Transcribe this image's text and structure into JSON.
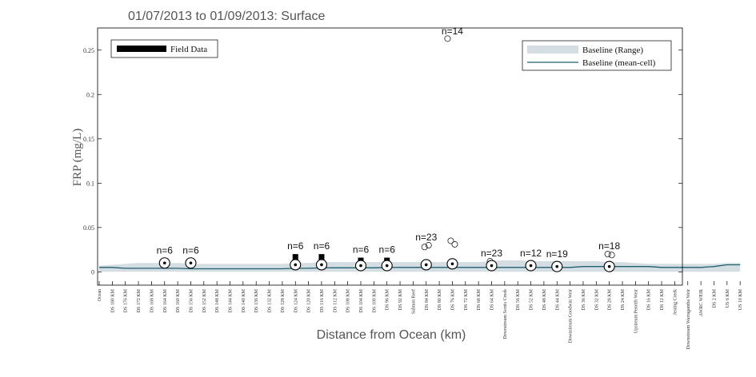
{
  "chart_data": {
    "type": "scatter",
    "title": "01/07/2013 to 01/09/2013: Surface",
    "xlabel": "Distance from Ocean (km)",
    "ylabel": "FRP (mg/L)",
    "ylim": [
      -0.015,
      0.275
    ],
    "yticks": [
      0,
      0.05,
      0.1,
      0.15,
      0.2,
      0.25
    ],
    "ytick_labels": [
      "0",
      "0.05",
      "0.1",
      "0.15",
      "0.2",
      "0.25"
    ],
    "grid": false,
    "x_categories": [
      "Ocean",
      "DS 180 KM",
      "DS 176 KM",
      "DS 172 KM",
      "DS 168 KM",
      "DS 164 KM",
      "DS 160 KM",
      "DS 156 KM",
      "DS 152 KM",
      "DS 148 KM",
      "DS 144 KM",
      "DS 140 KM",
      "DS 136 KM",
      "DS 132 KM",
      "DS 128 KM",
      "DS 124 KM",
      "DS 120 KM",
      "DS 116 KM",
      "DS 112 KM",
      "DS 108 KM",
      "DS 104 KM",
      "DS 100 KM",
      "DS 96 KM",
      "DS 92 KM",
      "Salmon Reef",
      "DS 84 KM",
      "DS 80 KM",
      "DS 76 KM",
      "DS 72 KM",
      "DS 68 KM",
      "DS 64 KM",
      "Downstream Scotts Creek",
      "DS 56 KM",
      "DS 52 KM",
      "DS 48 KM",
      "DS 44 KM",
      "Downstream Goodwin Weir",
      "DS 36 KM",
      "DS 32 KM",
      "DS 28 KM",
      "DS 24 KM",
      "Upstream Penrith Weir",
      "DS 16 KM",
      "DS 12 KM",
      "Jesting Creek",
      "Downstream Warragamba Weir",
      "AWRC WEIR",
      "DS 2 KM",
      "US 6 KM",
      "US 10 KM"
    ],
    "legend": {
      "position": "top-right",
      "entries": [
        {
          "label": "Baseline (Range)",
          "color": "#d4dde2"
        },
        {
          "label": "Baseline (mean-cell)",
          "color": "#1f5f6f"
        }
      ]
    },
    "field_legend": {
      "position": "top-left",
      "label": "Field Data",
      "color": "#000000"
    },
    "baseline_mean": [
      0.005,
      0.005,
      0.004,
      0.004,
      0.004,
      0.004,
      0.004,
      0.0035,
      0.0035,
      0.0035,
      0.0035,
      0.0035,
      0.0035,
      0.0035,
      0.0035,
      0.004,
      0.004,
      0.0045,
      0.0045,
      0.0045,
      0.0045,
      0.0045,
      0.005,
      0.005,
      0.005,
      0.005,
      0.005,
      0.005,
      0.005,
      0.005,
      0.005,
      0.005,
      0.005,
      0.005,
      0.005,
      0.005,
      0.005,
      0.006,
      0.006,
      0.006,
      0.006,
      0.006,
      0.006,
      0.005,
      0.005,
      0.005,
      0.005,
      0.006,
      0.008,
      0.008
    ],
    "baseline_lower": [
      0.0,
      0.0,
      0.0,
      0.0,
      0.0,
      0.0,
      0.0,
      0.0,
      0.0,
      0.0,
      0.0,
      0.0,
      0.0,
      0.0,
      0.0,
      0.0,
      0.0,
      0.0,
      0.0,
      0.0,
      0.0,
      0.0,
      0.0,
      0.0,
      0.0,
      0.0,
      0.0,
      0.0,
      0.0,
      0.0,
      0.0,
      0.0,
      0.0,
      0.0,
      0.0,
      0.0,
      0.0,
      0.0,
      0.0,
      0.0,
      0.0,
      0.0,
      0.0,
      0.0,
      0.0,
      0.0,
      0.0,
      0.0,
      0.0,
      0.0
    ],
    "baseline_upper": [
      0.007,
      0.008,
      0.009,
      0.01,
      0.01,
      0.01,
      0.01,
      0.009,
      0.009,
      0.009,
      0.009,
      0.009,
      0.009,
      0.009,
      0.009,
      0.01,
      0.01,
      0.011,
      0.011,
      0.011,
      0.011,
      0.011,
      0.011,
      0.011,
      0.011,
      0.011,
      0.011,
      0.011,
      0.011,
      0.011,
      0.012,
      0.013,
      0.013,
      0.012,
      0.012,
      0.012,
      0.012,
      0.012,
      0.012,
      0.011,
      0.011,
      0.01,
      0.009,
      0.009,
      0.009,
      0.009,
      0.009,
      0.009,
      0.01,
      0.01
    ],
    "sites": [
      {
        "x_index": 5,
        "n": "n=6",
        "median": 0.01,
        "iqr": null,
        "outliers": []
      },
      {
        "x_index": 7,
        "n": "n=6",
        "median": 0.01,
        "iqr": null,
        "outliers": []
      },
      {
        "x_index": 15,
        "n": "n=6",
        "median": 0.008,
        "iqr": [
          0.012,
          0.02
        ],
        "outliers": []
      },
      {
        "x_index": 17,
        "n": "n=6",
        "median": 0.008,
        "iqr": [
          0.012,
          0.02
        ],
        "outliers": []
      },
      {
        "x_index": 20,
        "n": "n=6",
        "median": 0.007,
        "iqr": [
          0.01,
          0.016
        ],
        "outliers": []
      },
      {
        "x_index": 22,
        "n": "n=6",
        "median": 0.007,
        "iqr": [
          0.01,
          0.016
        ],
        "outliers": []
      },
      {
        "x_index": 25,
        "n": "n=23",
        "median": 0.008,
        "iqr": [
          0.01,
          0.012
        ],
        "outliers": [
          0.028,
          0.03
        ]
      },
      {
        "x_index": 27,
        "n": "n=14",
        "median": 0.009,
        "iqr": [
          0.012,
          0.014
        ],
        "outliers": [
          0.035,
          0.031,
          0.263
        ]
      },
      {
        "x_index": 30,
        "n": "n=23",
        "median": 0.007,
        "iqr": null,
        "outliers": [
          0.012
        ]
      },
      {
        "x_index": 33,
        "n": "n=12",
        "median": 0.007,
        "iqr": null,
        "outliers": []
      },
      {
        "x_index": 35,
        "n": "n=19",
        "median": 0.006,
        "iqr": null,
        "outliers": []
      },
      {
        "x_index": 39,
        "n": "n=18",
        "median": 0.006,
        "iqr": null,
        "outliers": [
          0.02,
          0.019
        ]
      }
    ]
  }
}
